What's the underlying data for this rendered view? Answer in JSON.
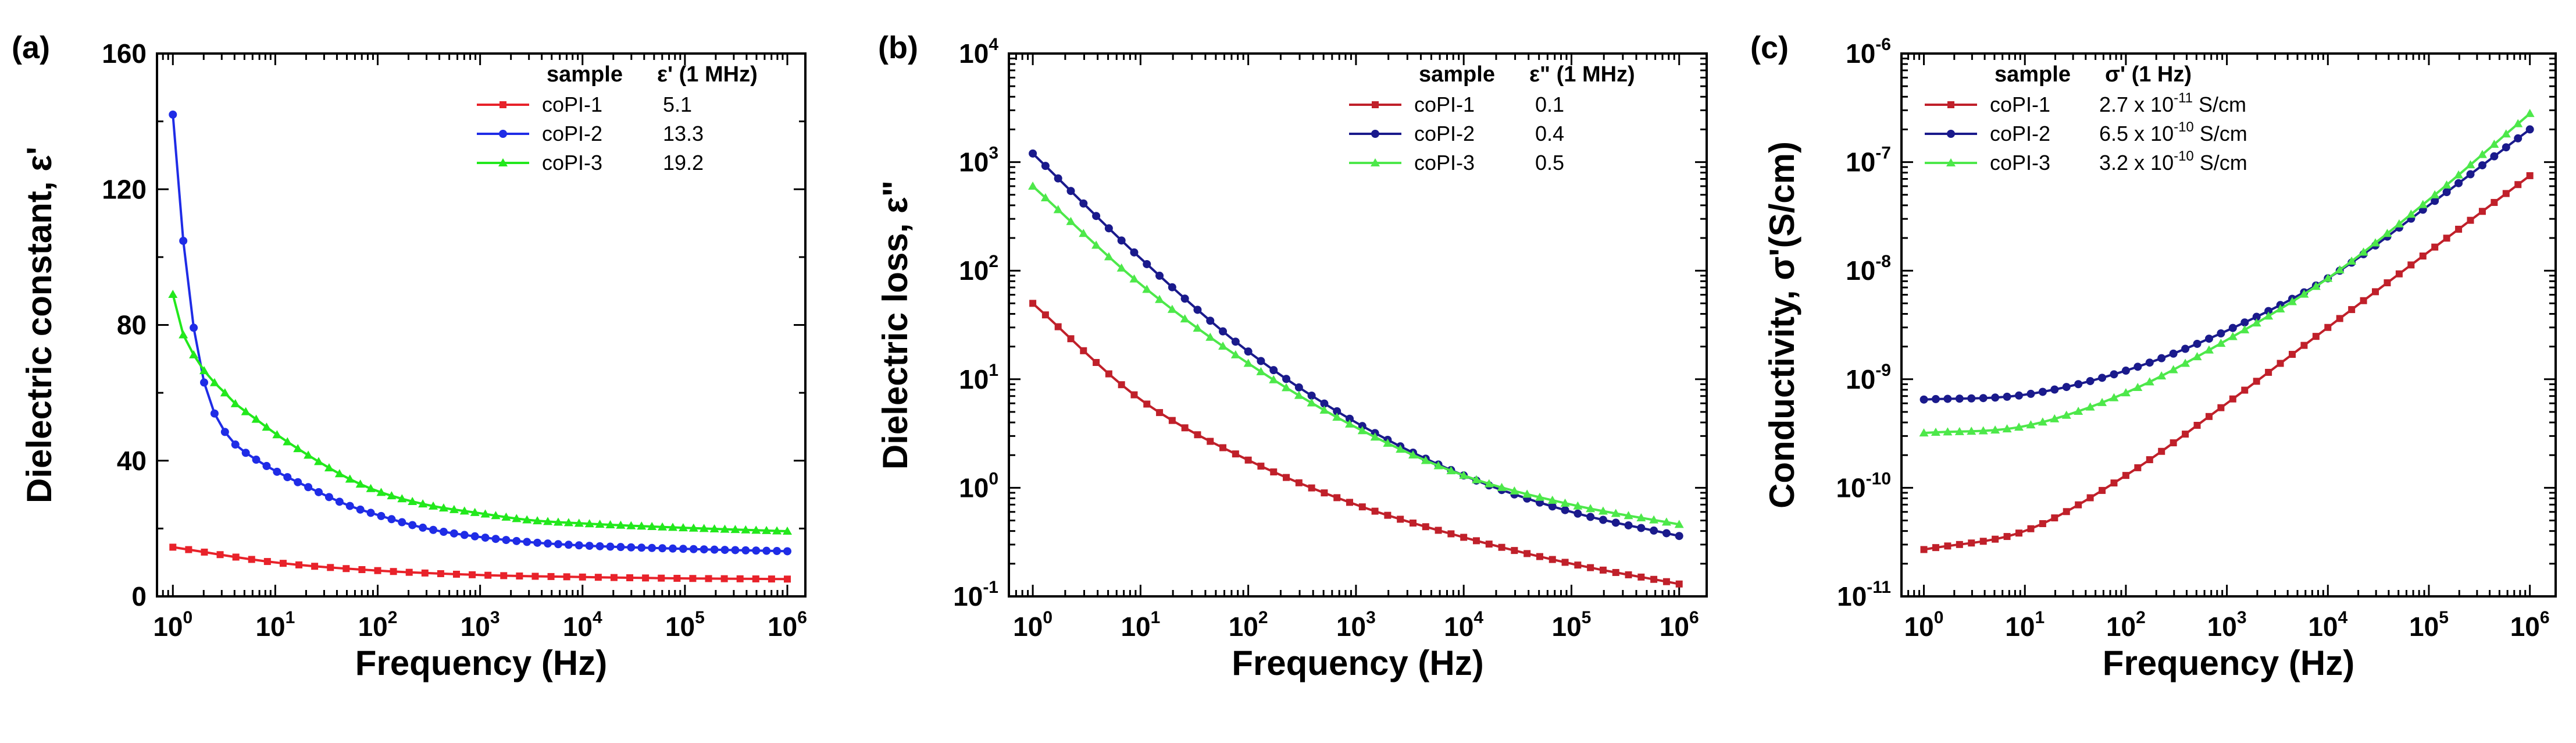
{
  "chart_data": [
    {
      "type": "line",
      "panel_label": "(a)",
      "xlabel": "Frequency (Hz)",
      "ylabel": "Dielectric constant, ε'",
      "xscale": "log",
      "yscale": "linear",
      "xlim": [
        0.7,
        1500000
      ],
      "ylim": [
        0,
        160
      ],
      "xticks": [
        {
          "base": "10",
          "exp": "0"
        },
        {
          "base": "10",
          "exp": "1"
        },
        {
          "base": "10",
          "exp": "2"
        },
        {
          "base": "10",
          "exp": "3"
        },
        {
          "base": "10",
          "exp": "4"
        },
        {
          "base": "10",
          "exp": "5"
        },
        {
          "base": "10",
          "exp": "6"
        }
      ],
      "yticks": [
        "0",
        "40",
        "80",
        "120",
        "160"
      ],
      "legend": {
        "header_sample": "sample",
        "header_value": "ε' (1 MHz)",
        "position": "top-right"
      },
      "series": [
        {
          "name": "coPI-1",
          "value_label": "5.1",
          "color": "#e8222a",
          "marker": "square",
          "x": [
            1,
            10,
            100,
            1000,
            10000,
            100000,
            1000000
          ],
          "y": [
            14.5,
            10.0,
            7.6,
            6.3,
            5.7,
            5.3,
            5.1
          ]
        },
        {
          "name": "coPI-2",
          "value_label": "13.3",
          "color": "#1f2ce6",
          "marker": "circle",
          "x": [
            1,
            1.3,
            1.7,
            2.2,
            3,
            4,
            6,
            10,
            20,
            50,
            100,
            300,
            1000,
            3000,
            10000,
            100000,
            1000000
          ],
          "y": [
            142,
            101,
            74,
            59,
            50,
            45,
            41,
            37,
            32.5,
            27,
            24,
            20,
            17.5,
            16,
            15,
            14,
            13.3
          ]
        },
        {
          "name": "coPI-3",
          "value_label": "19.2",
          "color": "#22e81c",
          "marker": "triangle",
          "x": [
            1,
            1.3,
            1.7,
            2.2,
            3,
            4,
            6,
            10,
            20,
            50,
            100,
            300,
            1000,
            3000,
            10000,
            100000,
            1000000
          ],
          "y": [
            89,
            76,
            70,
            65,
            61,
            57,
            53,
            48,
            42,
            35,
            31,
            27,
            24.5,
            22.5,
            21.5,
            20.2,
            19.2
          ]
        }
      ]
    },
    {
      "type": "line",
      "panel_label": "(b)",
      "xlabel": "Frequency (Hz)",
      "ylabel": "Dielectric loss, ε\"",
      "xscale": "log",
      "yscale": "log",
      "xlim": [
        0.6,
        1800000
      ],
      "ylim": [
        0.1,
        10000
      ],
      "xticks": [
        {
          "base": "10",
          "exp": "0"
        },
        {
          "base": "10",
          "exp": "1"
        },
        {
          "base": "10",
          "exp": "2"
        },
        {
          "base": "10",
          "exp": "3"
        },
        {
          "base": "10",
          "exp": "4"
        },
        {
          "base": "10",
          "exp": "5"
        },
        {
          "base": "10",
          "exp": "6"
        }
      ],
      "yticks": [
        {
          "base": "10",
          "exp": "-1"
        },
        {
          "base": "10",
          "exp": "0"
        },
        {
          "base": "10",
          "exp": "1"
        },
        {
          "base": "10",
          "exp": "2"
        },
        {
          "base": "10",
          "exp": "3"
        },
        {
          "base": "10",
          "exp": "4"
        }
      ],
      "legend": {
        "header_sample": "sample",
        "header_value": "ε\" (1 MHz)",
        "position": "top-right"
      },
      "series": [
        {
          "name": "coPI-1",
          "value_label": "0.1",
          "color": "#c0202a",
          "marker": "square",
          "x": [
            1,
            10,
            100,
            1000,
            10000,
            100000,
            1000000
          ],
          "y": [
            50,
            6.5,
            1.8,
            0.7,
            0.35,
            0.2,
            0.13
          ]
        },
        {
          "name": "coPI-2",
          "value_label": "0.4",
          "color": "#1a1a8c",
          "marker": "circle",
          "x": [
            1,
            10,
            100,
            1000,
            10000,
            100000,
            1000000
          ],
          "y": [
            1200,
            130,
            18,
            4.0,
            1.3,
            0.6,
            0.36
          ]
        },
        {
          "name": "coPI-3",
          "value_label": "0.5",
          "color": "#4de84a",
          "marker": "triangle",
          "x": [
            1,
            10,
            100,
            1000,
            10000,
            100000,
            1000000
          ],
          "y": [
            600,
            75,
            14,
            3.6,
            1.3,
            0.7,
            0.46
          ]
        }
      ]
    },
    {
      "type": "line",
      "panel_label": "(c)",
      "xlabel": "Frequency (Hz)",
      "ylabel": "Conductivity, σ'(S/cm)",
      "xscale": "log",
      "yscale": "log",
      "xlim": [
        0.6,
        1800000
      ],
      "ylim": [
        1e-11,
        1e-06
      ],
      "xticks": [
        {
          "base": "10",
          "exp": "0"
        },
        {
          "base": "10",
          "exp": "1"
        },
        {
          "base": "10",
          "exp": "2"
        },
        {
          "base": "10",
          "exp": "3"
        },
        {
          "base": "10",
          "exp": "4"
        },
        {
          "base": "10",
          "exp": "5"
        },
        {
          "base": "10",
          "exp": "6"
        }
      ],
      "yticks": [
        {
          "base": "10",
          "exp": "-11"
        },
        {
          "base": "10",
          "exp": "-10"
        },
        {
          "base": "10",
          "exp": "-9"
        },
        {
          "base": "10",
          "exp": "-8"
        },
        {
          "base": "10",
          "exp": "-7"
        },
        {
          "base": "10",
          "exp": "-6"
        }
      ],
      "legend": {
        "header_sample": "sample",
        "header_value": "σ' (1 Hz)",
        "position": "top-left"
      },
      "series": [
        {
          "name": "coPI-1",
          "value_label": "2.7 x 10",
          "value_exp": "-11",
          "value_unit": "S/cm",
          "color": "#c0202a",
          "marker": "square",
          "x": [
            1,
            10,
            100,
            1000,
            10000,
            100000,
            1000000
          ],
          "y": [
            2.7e-11,
            4e-11,
            1.3e-10,
            6e-10,
            3e-09,
            1.5e-08,
            7.5e-08
          ]
        },
        {
          "name": "coPI-2",
          "value_label": "6.5 x 10",
          "value_exp": "-10",
          "value_unit": "S/cm",
          "color": "#1a1a8c",
          "marker": "circle",
          "x": [
            1,
            10,
            100,
            1000,
            10000,
            100000,
            1000000
          ],
          "y": [
            6.5e-10,
            7.2e-10,
            1.2e-09,
            2.8e-09,
            8.5e-09,
            4e-08,
            2e-07
          ]
        },
        {
          "name": "coPI-3",
          "value_label": "3.2 x 10",
          "value_exp": "-10",
          "value_unit": "S/cm",
          "color": "#4de84a",
          "marker": "triangle",
          "x": [
            1,
            10,
            100,
            1000,
            10000,
            100000,
            1000000
          ],
          "y": [
            3.2e-10,
            3.7e-10,
            7.5e-10,
            2.3e-09,
            8.5e-09,
            4.5e-08,
            2.8e-07
          ]
        }
      ]
    }
  ]
}
